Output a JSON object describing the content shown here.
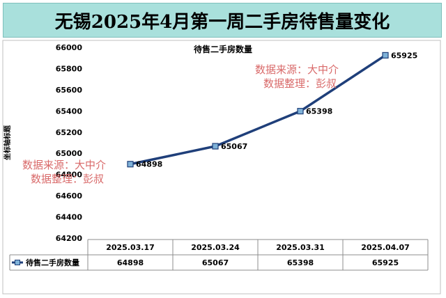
{
  "banner_title": "无锡2025年4月第一周二手房待售量变化",
  "chart_data": {
    "type": "line",
    "title": "待售二手房数量",
    "ylabel": "坐标轴标题",
    "xlabel": "",
    "categories": [
      "2025.03.17",
      "2025.03.24",
      "2025.03.31",
      "2025.04.07"
    ],
    "series": [
      {
        "name": "待售二手房数量",
        "values": [
          64898,
          65067,
          65398,
          65925
        ]
      }
    ],
    "ylim": [
      64200,
      66000
    ],
    "ystep": 200,
    "yticks": [
      "64200",
      "64400",
      "64600",
      "64800",
      "65000",
      "65200",
      "65400",
      "65600",
      "65800",
      "66000"
    ],
    "data_labels": [
      "64898",
      "65067",
      "65398",
      "65925"
    ],
    "grid": false,
    "legend": "data-table",
    "line_color": "#1f3f7a",
    "marker_fill": "#7fb2d8"
  },
  "watermark": {
    "line1": "数据来源：大中介",
    "line2": "数据整理：彭叔",
    "color": "#d96a6a"
  }
}
